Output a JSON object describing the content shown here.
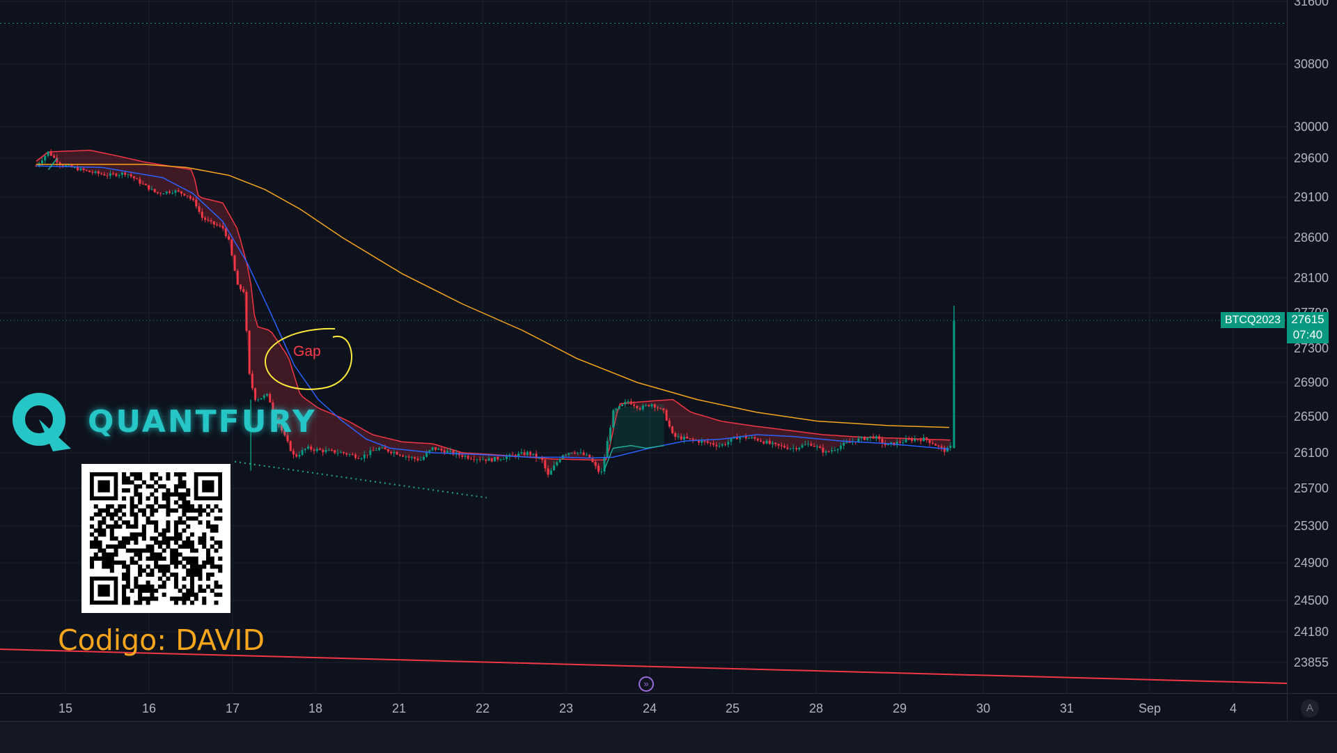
{
  "chart_data": {
    "type": "candlestick",
    "symbol": "BTCQ2023",
    "last_price": "27615",
    "countdown": "07:40",
    "x_ticks": [
      "15",
      "16",
      "17",
      "18",
      "21",
      "22",
      "23",
      "24",
      "25",
      "28",
      "29",
      "30",
      "31",
      "Sep",
      "4"
    ],
    "y_ticks": [
      "31600",
      "30800",
      "30000",
      "29600",
      "29100",
      "28600",
      "28100",
      "27700",
      "27300",
      "26900",
      "26500",
      "26100",
      "25700",
      "25300",
      "24900",
      "24500",
      "24180",
      "23855"
    ],
    "ylim": [
      23500,
      31600
    ],
    "price_path": [
      [
        14.4,
        29500
      ],
      [
        14.6,
        29680
      ],
      [
        14.8,
        29520
      ],
      [
        15.0,
        29480
      ],
      [
        15.3,
        29420
      ],
      [
        15.6,
        29380
      ],
      [
        15.9,
        29410
      ],
      [
        16.1,
        29300
      ],
      [
        16.4,
        29150
      ],
      [
        16.7,
        29180
      ],
      [
        16.9,
        29130
      ],
      [
        17.05,
        29020
      ],
      [
        17.15,
        28850
      ],
      [
        17.3,
        28780
      ],
      [
        17.5,
        28720
      ],
      [
        17.6,
        28560
      ],
      [
        17.75,
        28000
      ],
      [
        17.85,
        27950
      ],
      [
        17.95,
        26950
      ],
      [
        18.05,
        26700
      ],
      [
        18.25,
        26750
      ],
      [
        18.45,
        26400
      ],
      [
        18.7,
        26050
      ],
      [
        18.9,
        26150
      ],
      [
        19.2,
        26120
      ],
      [
        19.5,
        26100
      ],
      [
        19.8,
        26050
      ],
      [
        20.1,
        26150
      ],
      [
        20.4,
        26100
      ],
      [
        20.6,
        26050
      ],
      [
        20.8,
        26020
      ],
      [
        21.0,
        26150
      ],
      [
        21.3,
        26100
      ],
      [
        21.6,
        26050
      ],
      [
        21.95,
        26020
      ],
      [
        22.2,
        26050
      ],
      [
        22.6,
        26100
      ],
      [
        22.85,
        26000
      ],
      [
        22.9,
        25820
      ],
      [
        23.15,
        26080
      ],
      [
        23.35,
        26120
      ],
      [
        23.6,
        26050
      ],
      [
        23.8,
        25850
      ],
      [
        24.0,
        26550
      ],
      [
        24.25,
        26680
      ],
      [
        24.45,
        26600
      ],
      [
        24.65,
        26650
      ],
      [
        24.85,
        26550
      ],
      [
        25.0,
        26280
      ],
      [
        25.25,
        26250
      ],
      [
        25.5,
        26220
      ],
      [
        25.8,
        26180
      ],
      [
        26.1,
        26280
      ],
      [
        26.4,
        26250
      ],
      [
        26.7,
        26180
      ],
      [
        27.0,
        26150
      ],
      [
        27.3,
        26200
      ],
      [
        27.55,
        26100
      ],
      [
        27.8,
        26180
      ],
      [
        28.1,
        26250
      ],
      [
        28.35,
        26280
      ],
      [
        28.55,
        26180
      ],
      [
        28.8,
        26220
      ],
      [
        29.0,
        26250
      ],
      [
        29.2,
        26250
      ],
      [
        29.35,
        26200
      ],
      [
        29.45,
        26150
      ],
      [
        29.55,
        26120
      ],
      [
        29.65,
        26180
      ],
      [
        29.68,
        27615
      ]
    ],
    "final_spike_high": 27780,
    "ma_blue": [
      [
        14.4,
        29500
      ],
      [
        15.5,
        29480
      ],
      [
        16.5,
        29350
      ],
      [
        17.0,
        29150
      ],
      [
        17.5,
        28800
      ],
      [
        17.9,
        28300
      ],
      [
        18.3,
        27700
      ],
      [
        18.7,
        27100
      ],
      [
        19.1,
        26700
      ],
      [
        19.5,
        26450
      ],
      [
        19.9,
        26250
      ],
      [
        20.3,
        26150
      ],
      [
        21.0,
        26100
      ],
      [
        21.8,
        26080
      ],
      [
        22.6,
        26050
      ],
      [
        23.2,
        26050
      ],
      [
        23.6,
        26040
      ],
      [
        24.0,
        26050
      ],
      [
        24.6,
        26150
      ],
      [
        25.2,
        26230
      ],
      [
        25.8,
        26250
      ],
      [
        26.4,
        26300
      ],
      [
        27.0,
        26280
      ],
      [
        27.8,
        26230
      ],
      [
        28.6,
        26200
      ],
      [
        29.6,
        26140
      ]
    ],
    "ma_orange": [
      [
        14.4,
        29520
      ],
      [
        16.2,
        29520
      ],
      [
        16.9,
        29480
      ],
      [
        17.6,
        29380
      ],
      [
        18.2,
        29200
      ],
      [
        18.8,
        28950
      ],
      [
        19.5,
        28600
      ],
      [
        20.5,
        28150
      ],
      [
        21.5,
        27800
      ],
      [
        22.5,
        27500
      ],
      [
        23.4,
        27180
      ],
      [
        24.4,
        26900
      ],
      [
        25.4,
        26700
      ],
      [
        26.4,
        26550
      ],
      [
        27.4,
        26450
      ],
      [
        28.6,
        26400
      ],
      [
        29.6,
        26380
      ]
    ],
    "cloud_upper": [
      [
        14.4,
        29560
      ],
      [
        14.6,
        29680
      ],
      [
        15.3,
        29700
      ],
      [
        15.8,
        29620
      ],
      [
        16.2,
        29550
      ],
      [
        16.6,
        29500
      ],
      [
        17.0,
        29450
      ],
      [
        17.1,
        29100
      ],
      [
        17.5,
        29030
      ],
      [
        17.75,
        28700
      ],
      [
        17.95,
        28150
      ],
      [
        18.05,
        27550
      ],
      [
        18.3,
        27500
      ],
      [
        18.6,
        27200
      ],
      [
        18.8,
        26750
      ],
      [
        19.1,
        26600
      ],
      [
        19.6,
        26450
      ],
      [
        20.0,
        26300
      ],
      [
        20.5,
        26220
      ],
      [
        21.0,
        26200
      ],
      [
        21.5,
        26100
      ],
      [
        22.0,
        26080
      ],
      [
        22.6,
        26050
      ],
      [
        23.0,
        26030
      ],
      [
        23.6,
        26020
      ],
      [
        23.9,
        26020
      ],
      [
        24.1,
        26650
      ],
      [
        24.6,
        26680
      ],
      [
        25.0,
        26700
      ],
      [
        25.3,
        26550
      ],
      [
        25.8,
        26450
      ],
      [
        26.3,
        26400
      ],
      [
        26.9,
        26350
      ],
      [
        27.5,
        26300
      ],
      [
        28.2,
        26270
      ],
      [
        28.8,
        26260
      ],
      [
        29.2,
        26250
      ],
      [
        29.62,
        26240
      ]
    ],
    "green_line": [
      [
        14.6,
        29450
      ],
      [
        14.75,
        29600
      ],
      [
        23.85,
        25900
      ],
      [
        24.0,
        26150
      ],
      [
        24.3,
        26180
      ],
      [
        24.55,
        26150
      ],
      [
        24.85,
        26180
      ]
    ],
    "red_trendline": [
      [
        13.0,
        24250
      ],
      [
        31.8,
        24050
      ]
    ],
    "support_line": [
      [
        17.7,
        26000
      ],
      [
        21.9,
        25600
      ]
    ],
    "top_dotted_level": 31320,
    "price_dotted_level": 27615,
    "annotations": [
      "Gap"
    ]
  },
  "overlay": {
    "logo_text": "QUANTFURY",
    "promo_text": "Codigo: DAVID",
    "gap_label": "Gap"
  },
  "colors": {
    "background": "#0e121d",
    "grid": "#1c2030",
    "up": "#089981",
    "down": "#f23645",
    "ma_blue": "#2962ff",
    "ma_orange": "#f7a51c",
    "trendline": "#f23645",
    "ellipse": "#ffeb3b",
    "logo": "#26c6c6"
  },
  "icons": {
    "replay": "replay-icon",
    "auto_scale": "auto-scale-button"
  },
  "controls": {
    "auto_label": "A"
  }
}
